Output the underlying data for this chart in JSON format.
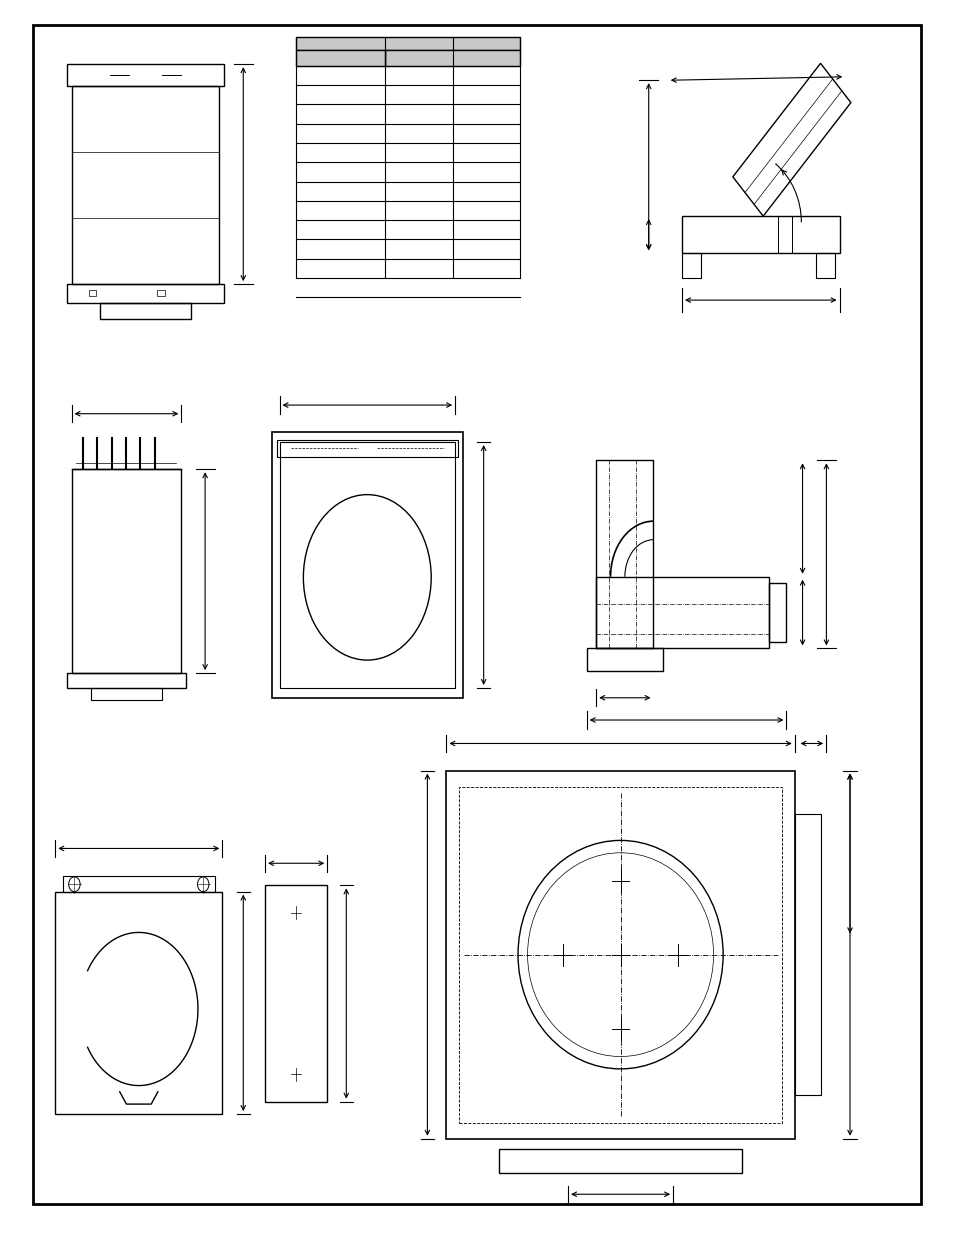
{
  "bg_color": "#ffffff",
  "border_color": "#000000",
  "line_color": "#000000",
  "gray_color": "#c8c8c8",
  "light_gray": "#d4d4d4"
}
